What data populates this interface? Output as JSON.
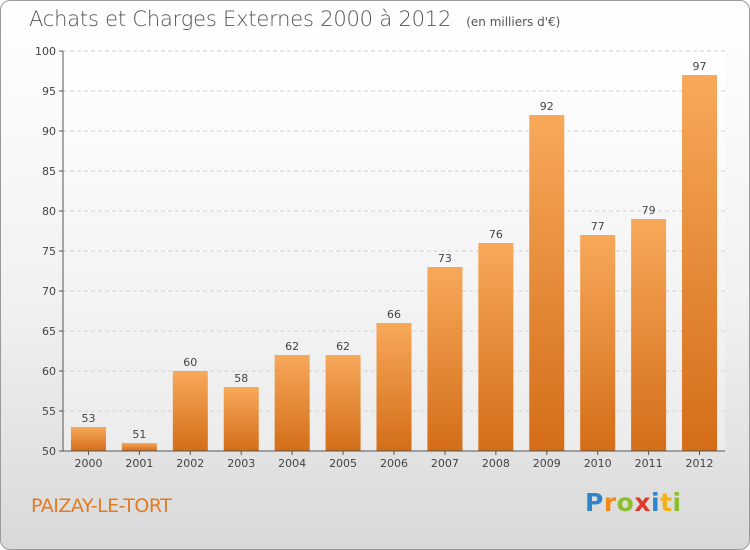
{
  "header": {
    "title": "Achats et Charges Externes 2000 à 2012",
    "unit": "(en milliers d'€)"
  },
  "commune": "PAIZAY-LE-TORT",
  "logo": {
    "letters": [
      "P",
      "r",
      "o",
      "x",
      "i",
      "t",
      "i"
    ],
    "colors": [
      "#2e86c9",
      "#f08a1e",
      "#8dbf2a",
      "#e23a2a",
      "#2e86c9",
      "#f2b21b",
      "#8dbf2a"
    ]
  },
  "chart_data": {
    "type": "bar",
    "categories": [
      "2000",
      "2001",
      "2002",
      "2003",
      "2004",
      "2005",
      "2006",
      "2007",
      "2008",
      "2009",
      "2010",
      "2011",
      "2012"
    ],
    "values": [
      53,
      51,
      60,
      58,
      62,
      62,
      66,
      73,
      76,
      92,
      77,
      79,
      97
    ],
    "title": "Achats et Charges Externes 2000 à 2012",
    "ylim": [
      50,
      100
    ],
    "yticks": [
      50,
      55,
      60,
      65,
      70,
      75,
      80,
      85,
      90,
      95,
      100
    ],
    "grid": true,
    "bar_color_top": "#f7a95a",
    "bar_color_bottom": "#d46d18"
  }
}
